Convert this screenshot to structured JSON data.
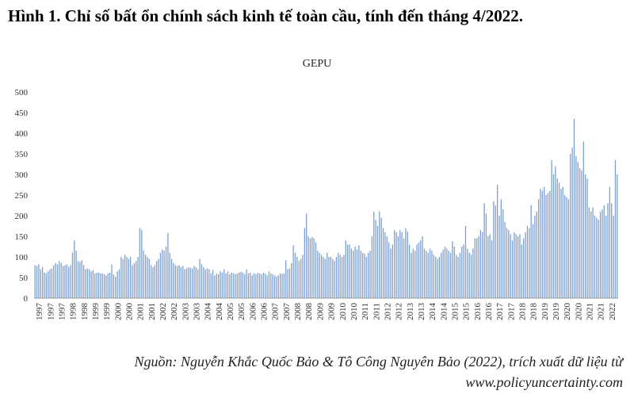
{
  "figure_title": "Hình 1. Chỉ số bất ổn chính sách kinh tế toàn cầu, tính đến tháng 4/2022.",
  "source_line1": "Nguồn: Nguyễn Khắc Quốc Bảo & Tô Công Nguyên Bảo (2022), trích xuất dữ liệu từ",
  "source_line2": "www.policyuncertainty.com",
  "colors": {
    "bar": "#7f9fcf",
    "axis": "#999999"
  },
  "chart_data": {
    "type": "bar",
    "title": "GEPU",
    "xlabel": "",
    "ylabel": "",
    "ylim": [
      0,
      500
    ],
    "y_ticks": [
      0,
      50,
      100,
      150,
      200,
      250,
      300,
      350,
      400,
      450,
      500
    ],
    "x_tick_labels": [
      "1997",
      "1997",
      "1997",
      "1998",
      "1998",
      "1999",
      "1999",
      "2000",
      "2000",
      "2001",
      "2001",
      "2002",
      "2002",
      "2003",
      "2003",
      "2004",
      "2004",
      "2005",
      "2005",
      "2006",
      "2006",
      "2007",
      "2007",
      "2008",
      "2008",
      "2009",
      "2009",
      "2010",
      "2010",
      "2011",
      "2011",
      "2012",
      "2012",
      "2013",
      "2013",
      "2014",
      "2014",
      "2015",
      "2015",
      "2016",
      "2016",
      "2017",
      "2017",
      "2018",
      "2018",
      "2019",
      "2019",
      "2020",
      "2020",
      "2021",
      "2021",
      "2022"
    ],
    "period": "1997-01 to 2022-04 (monthly)",
    "values": [
      80,
      78,
      82,
      70,
      75,
      62,
      60,
      65,
      70,
      72,
      80,
      85,
      82,
      90,
      85,
      78,
      80,
      82,
      75,
      80,
      110,
      140,
      115,
      90,
      88,
      92,
      80,
      70,
      72,
      70,
      65,
      68,
      60,
      62,
      62,
      60,
      60,
      58,
      55,
      60,
      62,
      82,
      58,
      52,
      65,
      70,
      100,
      95,
      105,
      100,
      95,
      100,
      80,
      85,
      90,
      100,
      170,
      165,
      115,
      105,
      100,
      95,
      80,
      75,
      80,
      90,
      95,
      110,
      118,
      115,
      125,
      158,
      110,
      95,
      85,
      80,
      78,
      80,
      75,
      78,
      70,
      72,
      75,
      74,
      72,
      78,
      75,
      70,
      95,
      82,
      75,
      70,
      72,
      70,
      60,
      68,
      55,
      60,
      58,
      65,
      62,
      70,
      60,
      65,
      58,
      62,
      60,
      58,
      60,
      62,
      64,
      62,
      58,
      70,
      60,
      62,
      55,
      60,
      58,
      62,
      60,
      58,
      62,
      60,
      55,
      65,
      60,
      58,
      55,
      52,
      55,
      60,
      58,
      60,
      92,
      70,
      72,
      85,
      128,
      110,
      100,
      90,
      95,
      105,
      170,
      205,
      150,
      145,
      148,
      145,
      135,
      115,
      110,
      105,
      100,
      95,
      110,
      100,
      100,
      95,
      90,
      100,
      110,
      105,
      100,
      105,
      140,
      130,
      130,
      120,
      115,
      125,
      118,
      128,
      115,
      110,
      108,
      100,
      110,
      115,
      150,
      210,
      190,
      175,
      210,
      195,
      170,
      160,
      150,
      135,
      120,
      130,
      165,
      160,
      150,
      165,
      160,
      145,
      170,
      162,
      130,
      110,
      120,
      115,
      130,
      135,
      140,
      150,
      120,
      115,
      110,
      120,
      115,
      105,
      100,
      95,
      100,
      110,
      118,
      125,
      120,
      115,
      110,
      138,
      125,
      105,
      100,
      110,
      125,
      130,
      175,
      120,
      110,
      105,
      120,
      145,
      145,
      150,
      165,
      160,
      230,
      205,
      150,
      155,
      140,
      235,
      225,
      275,
      200,
      240,
      215,
      185,
      170,
      165,
      155,
      140,
      160,
      155,
      150,
      155,
      130,
      145,
      160,
      175,
      170,
      225,
      180,
      200,
      210,
      240,
      265,
      260,
      270,
      250,
      255,
      260,
      335,
      300,
      320,
      290,
      280,
      265,
      270,
      250,
      245,
      240,
      350,
      365,
      435,
      345,
      330,
      315,
      310,
      380,
      300,
      290,
      220,
      210,
      220,
      200,
      195,
      190,
      210,
      215,
      225,
      200,
      230,
      270,
      230,
      200,
      335,
      300
    ]
  }
}
